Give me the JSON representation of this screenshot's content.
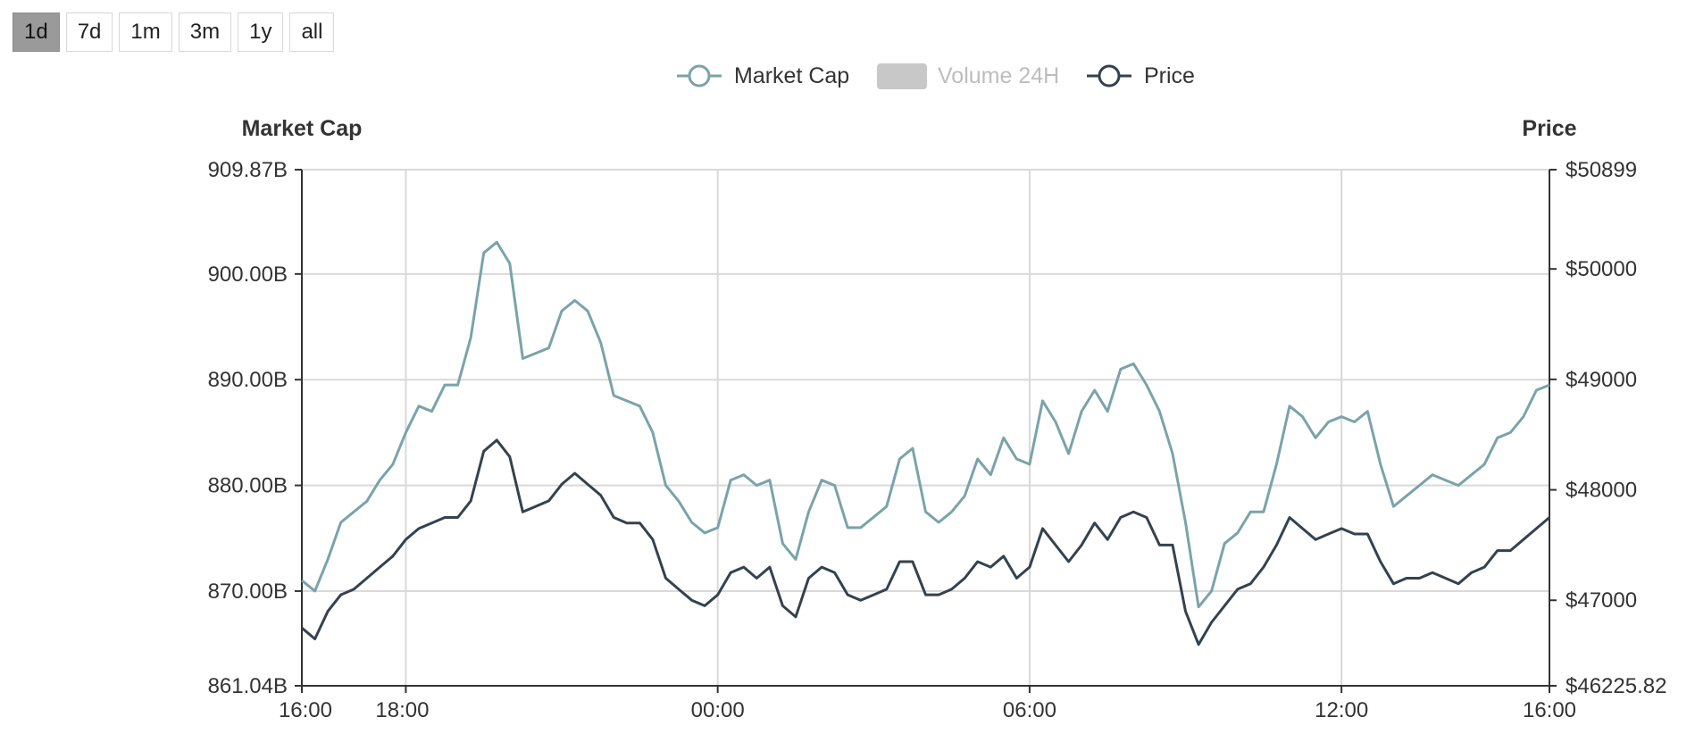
{
  "range_buttons": [
    {
      "label": "1d",
      "active": true
    },
    {
      "label": "7d",
      "active": false
    },
    {
      "label": "1m",
      "active": false
    },
    {
      "label": "3m",
      "active": false
    },
    {
      "label": "1y",
      "active": false
    },
    {
      "label": "all",
      "active": false
    }
  ],
  "colors": {
    "market_cap": "#7aa3aa",
    "price": "#34424f",
    "volume_disabled": "#c8c8c8",
    "legend_disabled_text": "#bdbdbd",
    "grid": "#d9d9d9",
    "axis": "#333333"
  },
  "chart_data": {
    "type": "line",
    "legend": [
      {
        "name": "Market Cap",
        "enabled": true,
        "icon": "circle-line-icon"
      },
      {
        "name": "Volume 24H",
        "enabled": false,
        "icon": "rect-swatch-icon"
      },
      {
        "name": "Price",
        "enabled": true,
        "icon": "circle-line-icon"
      }
    ],
    "legend_position": "top-center",
    "grid": true,
    "x_axis": {
      "min_hours": 0,
      "max_hours": 24,
      "tick_hours": [
        0,
        2,
        8,
        14,
        20,
        24
      ],
      "tick_labels": [
        "16:00",
        "18:00",
        "00:00",
        "06:00",
        "12:00",
        "16:00"
      ]
    },
    "y_left": {
      "title": "Market Cap",
      "min": 861.04,
      "max": 909.87,
      "ticks": [
        861.04,
        870.0,
        880.0,
        890.0,
        900.0,
        909.87
      ],
      "tick_labels": [
        "861.04B",
        "870.00B",
        "880.00B",
        "890.00B",
        "900.00B",
        "909.87B"
      ]
    },
    "y_right": {
      "title": "Price",
      "min": 46225.82,
      "max": 50899,
      "ticks": [
        46225.82,
        47000,
        48000,
        49000,
        50000,
        50899
      ],
      "tick_labels": [
        "$46225.82",
        "$47000",
        "$48000",
        "$49000",
        "$50000",
        "$50899"
      ]
    },
    "series": [
      {
        "name": "Market Cap",
        "axis": "left",
        "unit": "B",
        "x": [
          0,
          0.25,
          0.5,
          0.75,
          1.0,
          1.25,
          1.5,
          1.75,
          2.0,
          2.25,
          2.5,
          2.75,
          3.0,
          3.25,
          3.5,
          3.75,
          4.0,
          4.25,
          4.5,
          4.75,
          5.0,
          5.25,
          5.5,
          5.75,
          6.0,
          6.25,
          6.5,
          6.75,
          7.0,
          7.25,
          7.5,
          7.75,
          8.0,
          8.25,
          8.5,
          8.75,
          9.0,
          9.25,
          9.5,
          9.75,
          10.0,
          10.25,
          10.5,
          10.75,
          11.0,
          11.25,
          11.5,
          11.75,
          12.0,
          12.25,
          12.5,
          12.75,
          13.0,
          13.25,
          13.5,
          13.75,
          14.0,
          14.25,
          14.5,
          14.75,
          15.0,
          15.25,
          15.5,
          15.75,
          16.0,
          16.25,
          16.5,
          16.75,
          17.0,
          17.25,
          17.5,
          17.75,
          18.0,
          18.25,
          18.5,
          18.75,
          19.0,
          19.25,
          19.5,
          19.75,
          20.0,
          20.25,
          20.5,
          20.75,
          21.0,
          21.25,
          21.5,
          21.75,
          22.0,
          22.25,
          22.5,
          22.75,
          23.0,
          23.25,
          23.5,
          23.75,
          24.0
        ],
        "values": [
          871.0,
          870.0,
          873.0,
          876.5,
          877.5,
          878.5,
          880.5,
          882.0,
          885.0,
          887.5,
          887.0,
          889.5,
          889.5,
          894.0,
          902.0,
          903.0,
          901.0,
          892.0,
          892.5,
          893.0,
          896.5,
          897.5,
          896.5,
          893.5,
          888.5,
          888.0,
          887.5,
          885.0,
          880.0,
          878.5,
          876.5,
          875.5,
          876.0,
          880.5,
          881.0,
          880.0,
          880.5,
          874.5,
          873.0,
          877.5,
          880.5,
          880.0,
          876.0,
          876.0,
          877.0,
          878.0,
          882.5,
          883.5,
          877.5,
          876.5,
          877.5,
          879.0,
          882.5,
          881.0,
          884.5,
          882.5,
          882.0,
          888.0,
          886.0,
          883.0,
          887.0,
          889.0,
          887.0,
          891.0,
          891.5,
          889.5,
          887.0,
          883.0,
          876.5,
          868.5,
          870.0,
          874.5,
          875.5,
          877.5,
          877.5,
          882.0,
          887.5,
          886.5,
          884.5,
          886.0,
          886.5,
          886.0,
          887.0,
          882.0,
          878.0,
          879.0,
          880.0,
          881.0,
          880.5,
          880.0,
          881.0,
          882.0,
          884.5,
          885.0,
          886.5,
          889.0,
          889.5
        ]
      },
      {
        "name": "Price",
        "axis": "right",
        "unit": "$",
        "x": [
          0,
          0.25,
          0.5,
          0.75,
          1.0,
          1.25,
          1.5,
          1.75,
          2.0,
          2.25,
          2.5,
          2.75,
          3.0,
          3.25,
          3.5,
          3.75,
          4.0,
          4.25,
          4.5,
          4.75,
          5.0,
          5.25,
          5.5,
          5.75,
          6.0,
          6.25,
          6.5,
          6.75,
          7.0,
          7.25,
          7.5,
          7.75,
          8.0,
          8.25,
          8.5,
          8.75,
          9.0,
          9.25,
          9.5,
          9.75,
          10.0,
          10.25,
          10.5,
          10.75,
          11.0,
          11.25,
          11.5,
          11.75,
          12.0,
          12.25,
          12.5,
          12.75,
          13.0,
          13.25,
          13.5,
          13.75,
          14.0,
          14.25,
          14.5,
          14.75,
          15.0,
          15.25,
          15.5,
          15.75,
          16.0,
          16.25,
          16.5,
          16.75,
          17.0,
          17.25,
          17.5,
          17.75,
          18.0,
          18.25,
          18.5,
          18.75,
          19.0,
          19.25,
          19.5,
          19.75,
          20.0,
          20.25,
          20.5,
          20.75,
          21.0,
          21.25,
          21.5,
          21.75,
          22.0,
          22.25,
          22.5,
          22.75,
          23.0,
          23.25,
          23.5,
          23.75,
          24.0
        ],
        "values": [
          46750,
          46650,
          46900,
          47050,
          47100,
          47200,
          47300,
          47400,
          47550,
          47650,
          47700,
          47750,
          47750,
          47900,
          48350,
          48450,
          48300,
          47800,
          47850,
          47900,
          48050,
          48150,
          48050,
          47950,
          47750,
          47700,
          47700,
          47550,
          47200,
          47100,
          47000,
          46950,
          47050,
          47250,
          47300,
          47200,
          47300,
          46950,
          46850,
          47200,
          47300,
          47250,
          47050,
          47000,
          47050,
          47100,
          47350,
          47350,
          47050,
          47050,
          47100,
          47200,
          47350,
          47300,
          47400,
          47200,
          47300,
          47650,
          47500,
          47350,
          47500,
          47700,
          47550,
          47750,
          47800,
          47750,
          47500,
          47500,
          46900,
          46600,
          46800,
          46950,
          47100,
          47150,
          47300,
          47500,
          47750,
          47650,
          47550,
          47600,
          47650,
          47600,
          47600,
          47350,
          47150,
          47200,
          47200,
          47250,
          47200,
          47150,
          47250,
          47300,
          47450,
          47450,
          47550,
          47650,
          47750
        ]
      }
    ]
  }
}
